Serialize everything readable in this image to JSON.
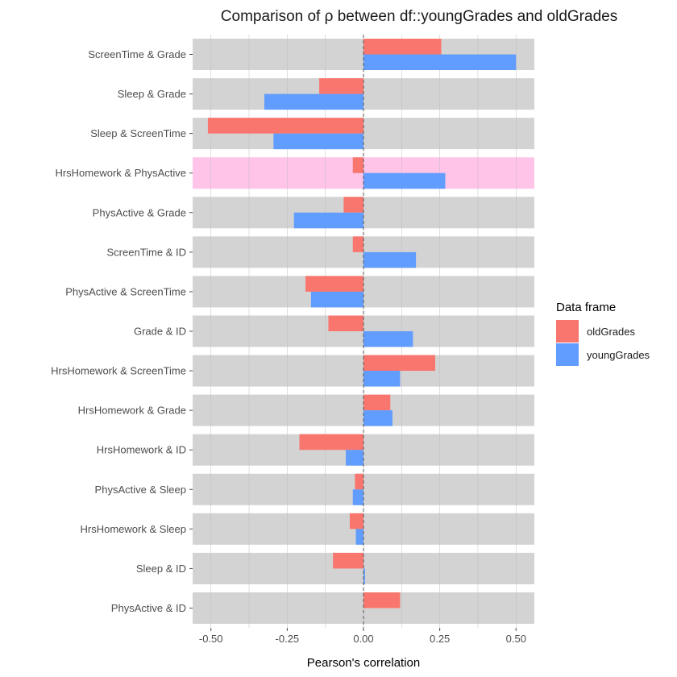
{
  "chart_data": {
    "type": "bar",
    "orientation": "horizontal",
    "title": "Comparison of ρ between df::youngGrades and oldGrades",
    "xlabel": "Pearson's correlation",
    "ylabel": "",
    "xlim": [
      -0.56,
      0.56
    ],
    "x_ticks": [
      -0.5,
      -0.25,
      0.0,
      0.25,
      0.5
    ],
    "x_tick_labels": [
      "-0.50",
      "-0.25",
      "0.00",
      "0.25",
      "0.50"
    ],
    "grid": true,
    "reference_line": 0,
    "highlighted_category": "HrsHomework & PhysActive",
    "highlight_color": "#ffc4e8",
    "band_color": "#d3d3d3",
    "categories": [
      "ScreenTime & Grade",
      "Sleep & Grade",
      "Sleep & ScreenTime",
      "HrsHomework & PhysActive",
      "PhysActive & Grade",
      "ScreenTime & ID",
      "PhysActive & ScreenTime",
      "Grade & ID",
      "HrsHomework & ScreenTime",
      "HrsHomework & Grade",
      "HrsHomework & ID",
      "PhysActive & Sleep",
      "HrsHomework & Sleep",
      "Sleep & ID",
      "PhysActive & ID"
    ],
    "series": [
      {
        "name": "oldGrades",
        "color": "#f8766d",
        "values": [
          0.255,
          -0.145,
          -0.51,
          -0.035,
          -0.065,
          -0.035,
          -0.19,
          -0.115,
          0.235,
          0.088,
          -0.21,
          -0.028,
          -0.045,
          -0.1,
          0.12
        ]
      },
      {
        "name": "youngGrades",
        "color": "#619cff",
        "values": [
          0.5,
          -0.325,
          -0.295,
          0.268,
          -0.228,
          0.172,
          -0.172,
          0.162,
          0.12,
          0.095,
          -0.058,
          -0.035,
          -0.025,
          0.005,
          0.0
        ]
      }
    ],
    "legend": {
      "title": "Data frame",
      "placement": "right",
      "entries": [
        "oldGrades",
        "youngGrades"
      ]
    }
  }
}
